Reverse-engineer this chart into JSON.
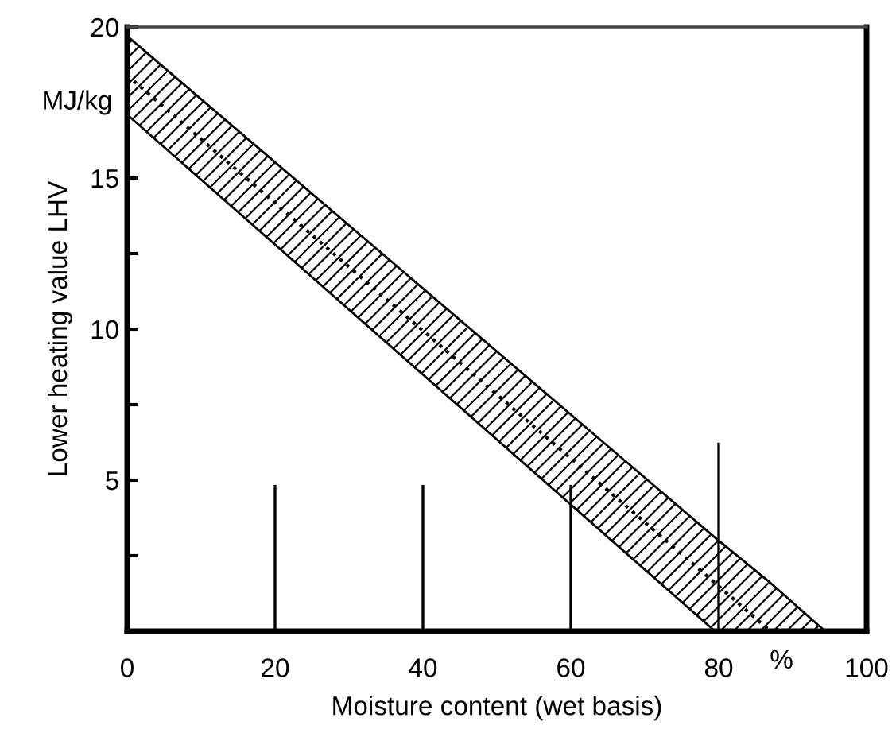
{
  "chart_data": {
    "type": "line",
    "xlabel": "Moisture content (wet basis)",
    "ylabel": "Lower heating value LHV",
    "annotations": [
      {
        "text": "MJ/kg"
      },
      {
        "text": "%"
      }
    ],
    "series": [
      {
        "color": "#000000",
        "line_style": "dotted",
        "x": [
          0,
          79.5,
          87,
          94.4
        ],
        "values": [
          18.4,
          1.6,
          0,
          null
        ],
        "lower": [
          17.1,
          0,
          0,
          0
        ],
        "upper": [
          19.7,
          3.1,
          1.6,
          0
        ]
      },
      {
        "type": "line",
        "color": "#000000",
        "x": [
          20,
          20
        ],
        "values": [
          0,
          4.8
        ]
      },
      {
        "type": "line",
        "color": "#000000",
        "x": [
          40,
          40
        ],
        "values": [
          0,
          4.8
        ]
      },
      {
        "type": "line",
        "color": "#000000",
        "x": [
          60,
          60
        ],
        "values": [
          0,
          4.8
        ]
      },
      {
        "type": "line",
        "color": "#000000",
        "x": [
          80,
          80
        ],
        "values": [
          0,
          6.2
        ]
      }
    ],
    "xlim": [
      0,
      100
    ],
    "xticks": [
      0,
      20,
      40,
      60,
      80,
      100
    ],
    "ylim": [
      0,
      20
    ],
    "yticks": [
      {
        "value": 2.5,
        "label": null
      },
      5,
      {
        "value": 7.5,
        "label": null
      },
      10,
      {
        "value": 12.5,
        "label": null
      },
      15,
      20
    ],
    "grid": false,
    "legend": false
  }
}
